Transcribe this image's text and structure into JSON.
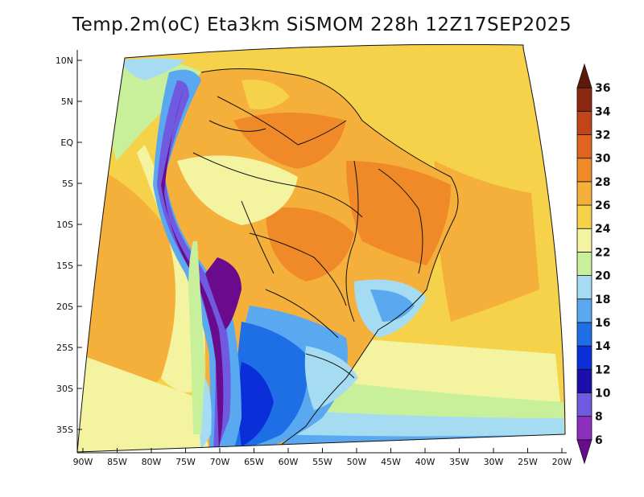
{
  "title": "Temp.2m(oC) Eta3km SiSMOM 228h 12Z17SEP2025",
  "lat_labels": [
    "10N",
    "5N",
    "EQ",
    "5S",
    "10S",
    "15S",
    "20S",
    "25S",
    "30S",
    "35S"
  ],
  "lon_labels": [
    "90W",
    "85W",
    "80W",
    "75W",
    "70W",
    "65W",
    "60W",
    "55W",
    "50W",
    "45W",
    "40W",
    "35W",
    "30W",
    "25W",
    "20W"
  ],
  "colorbar": {
    "levels": [
      "6",
      "8",
      "10",
      "12",
      "14",
      "16",
      "18",
      "20",
      "22",
      "24",
      "26",
      "28",
      "30",
      "32",
      "34",
      "36"
    ],
    "colors": [
      "#6a0a8c",
      "#8c2fbf",
      "#6f5ae0",
      "#1a0fa8",
      "#0a2fd8",
      "#1e6fe6",
      "#5aa8f0",
      "#a6dcf2",
      "#c8f09a",
      "#f4f4a0",
      "#f5d24a",
      "#f5b03c",
      "#f08a28",
      "#e0641e",
      "#c0461a",
      "#8a2810",
      "#5c1a0a"
    ]
  }
}
